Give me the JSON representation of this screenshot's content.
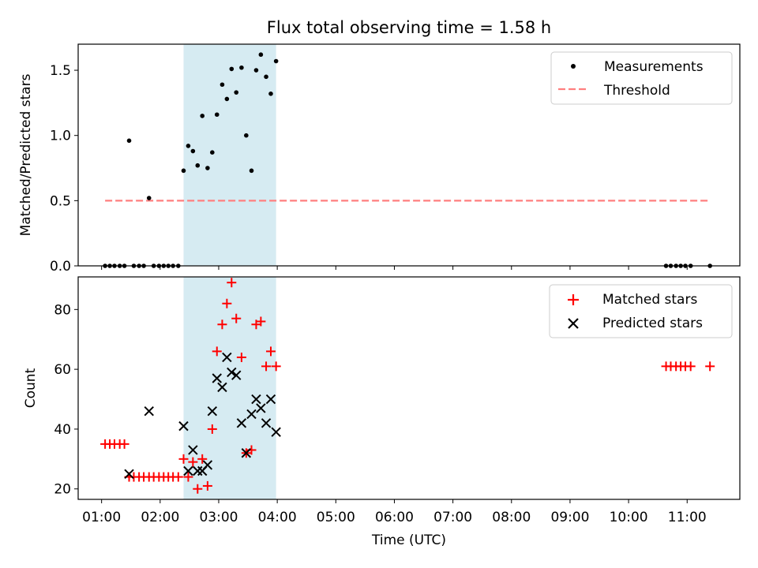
{
  "chart_data": [
    {
      "type": "scatter",
      "panel": "top",
      "title": "Flux total observing time = 1.58 h",
      "ylabel": "Matched/Predicted stars",
      "xlabel": "",
      "xlim_hours": [
        0.6,
        11.9
      ],
      "ylim": [
        0,
        1.7
      ],
      "yticks": [
        0.0,
        0.5,
        1.0,
        1.5
      ],
      "ytick_labels": [
        "0.0",
        "0.5",
        "1.0",
        "1.5"
      ],
      "shaded_region_hours": [
        2.4,
        3.98
      ],
      "shade_color": "#add8e6",
      "legend_position": "top-right",
      "series": [
        {
          "name": "Measurements",
          "style": "dot",
          "color": "#000000",
          "x": [
            1.06,
            1.14,
            1.22,
            1.31,
            1.39,
            1.47,
            1.55,
            1.64,
            1.72,
            1.81,
            1.89,
            1.98,
            2.06,
            2.14,
            2.22,
            2.31,
            2.4,
            2.48,
            2.56,
            2.64,
            2.72,
            2.81,
            2.89,
            2.97,
            3.06,
            3.14,
            3.22,
            3.3,
            3.39,
            3.47,
            3.56,
            3.64,
            3.72,
            3.81,
            3.89,
            3.98,
            10.64,
            10.72,
            10.81,
            10.89,
            10.97,
            11.06,
            11.39
          ],
          "y": [
            0,
            0,
            0,
            0,
            0,
            0.96,
            0,
            0,
            0,
            0.52,
            0,
            0,
            0,
            0,
            0,
            0,
            0.73,
            0.92,
            0.88,
            0.77,
            1.15,
            0.75,
            0.87,
            1.16,
            1.39,
            1.28,
            1.51,
            1.33,
            1.52,
            1.0,
            0.73,
            1.5,
            1.62,
            1.45,
            1.32,
            1.57,
            0,
            0,
            0,
            0,
            0,
            0,
            0
          ]
        },
        {
          "name": "Threshold",
          "style": "dashed-line",
          "color": "#ff7f7f",
          "x": [
            1.06,
            11.39
          ],
          "y": [
            0.5,
            0.5
          ]
        }
      ]
    },
    {
      "type": "scatter",
      "panel": "bottom",
      "title": "",
      "ylabel": "Count",
      "xlabel": "Time (UTC)",
      "xlim_hours": [
        0.6,
        11.9
      ],
      "ylim": [
        16.5,
        90.9
      ],
      "yticks": [
        20,
        40,
        60,
        80
      ],
      "ytick_labels": [
        "20",
        "40",
        "60",
        "80"
      ],
      "xticks_hours": [
        1,
        2,
        3,
        4,
        5,
        6,
        7,
        8,
        9,
        10,
        11
      ],
      "xtick_labels": [
        "01:00",
        "02:00",
        "03:00",
        "04:00",
        "05:00",
        "06:00",
        "07:00",
        "08:00",
        "09:00",
        "10:00",
        "11:00"
      ],
      "shaded_region_hours": [
        2.4,
        3.98
      ],
      "shade_color": "#add8e6",
      "legend_position": "top-right",
      "series": [
        {
          "name": "Matched stars",
          "style": "plus",
          "color": "#ff0000",
          "x": [
            1.06,
            1.14,
            1.22,
            1.31,
            1.39,
            1.47,
            1.55,
            1.64,
            1.72,
            1.81,
            1.89,
            1.98,
            2.06,
            2.14,
            2.22,
            2.31,
            2.4,
            2.48,
            2.56,
            2.64,
            2.72,
            2.81,
            2.89,
            2.97,
            3.06,
            3.14,
            3.22,
            3.3,
            3.39,
            3.47,
            3.56,
            3.64,
            3.72,
            3.81,
            3.89,
            3.98,
            10.64,
            10.72,
            10.81,
            10.89,
            10.97,
            11.06,
            11.39
          ],
          "y": [
            35,
            35,
            35,
            35,
            35,
            24,
            24,
            24,
            24,
            24,
            24,
            24,
            24,
            24,
            24,
            24,
            30,
            24,
            29,
            20,
            30,
            21,
            40,
            66,
            75,
            82,
            89,
            77,
            64,
            32,
            33,
            75,
            76,
            61,
            66,
            61,
            61,
            61,
            61,
            61,
            61,
            61,
            61
          ]
        },
        {
          "name": "Predicted stars",
          "style": "x",
          "color": "#000000",
          "x": [
            1.47,
            1.81,
            2.4,
            2.48,
            2.56,
            2.64,
            2.72,
            2.81,
            2.89,
            2.97,
            3.06,
            3.14,
            3.22,
            3.3,
            3.39,
            3.47,
            3.56,
            3.64,
            3.72,
            3.81,
            3.89,
            3.98
          ],
          "y": [
            25,
            46,
            41,
            26,
            33,
            26,
            26,
            28,
            46,
            57,
            54,
            64,
            59,
            58,
            42,
            32,
            45,
            50,
            47,
            42,
            50,
            39
          ]
        }
      ]
    }
  ]
}
